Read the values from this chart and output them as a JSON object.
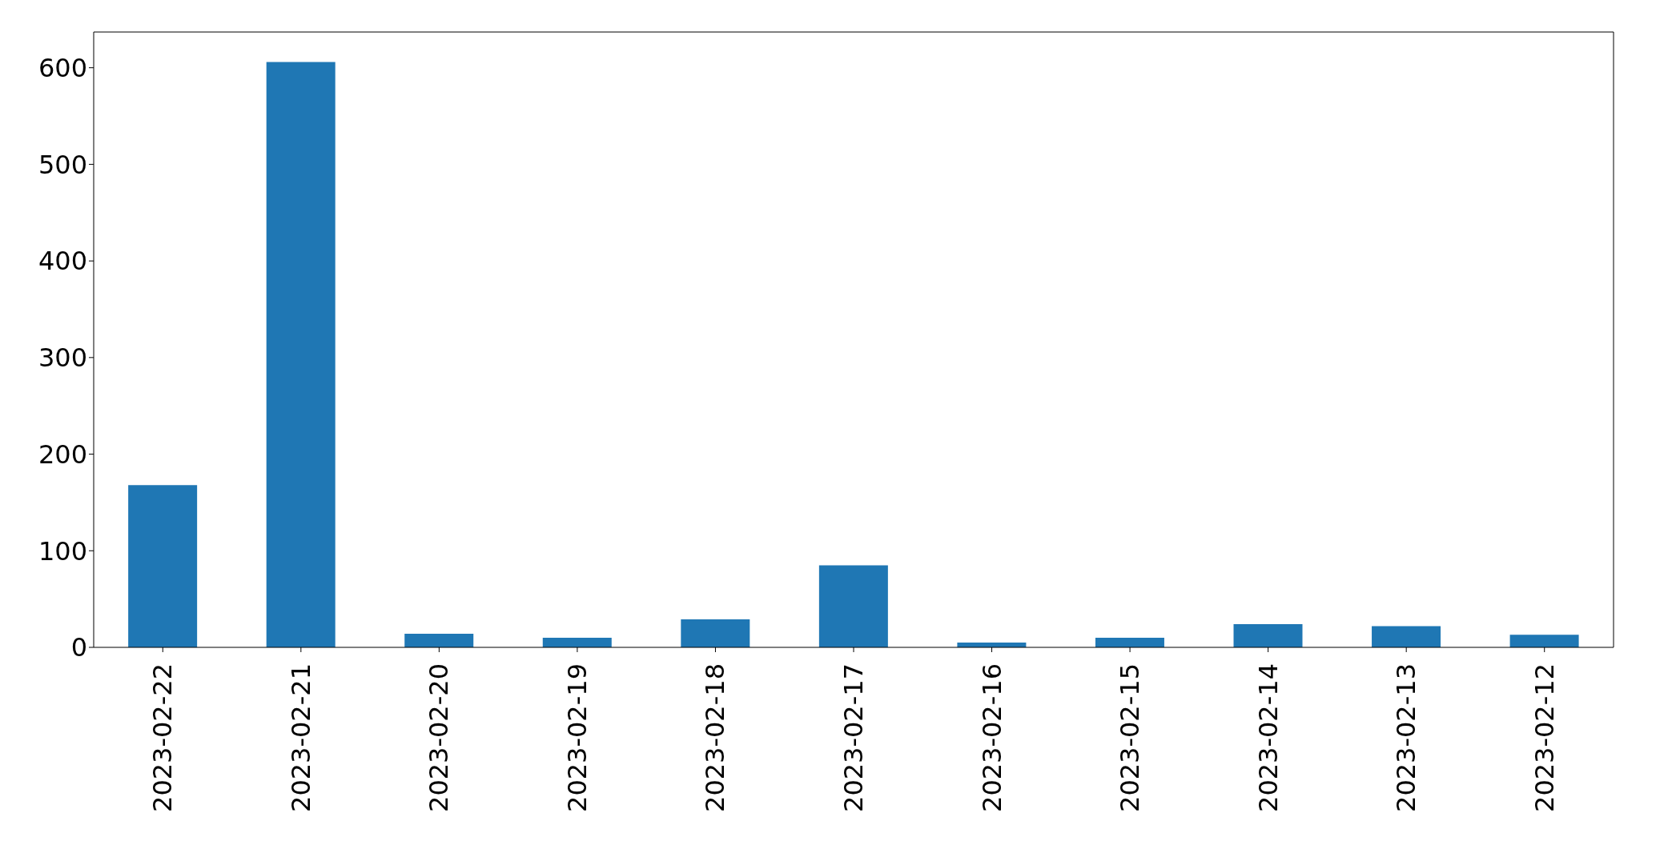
{
  "chart_data": {
    "type": "bar",
    "categories": [
      "2023-02-22",
      "2023-02-21",
      "2023-02-20",
      "2023-02-19",
      "2023-02-18",
      "2023-02-17",
      "2023-02-16",
      "2023-02-15",
      "2023-02-14",
      "2023-02-13",
      "2023-02-12"
    ],
    "values": [
      168,
      606,
      14,
      10,
      29,
      85,
      5,
      10,
      24,
      22,
      13
    ],
    "color": "#1f77b4",
    "ylim": [
      0,
      637
    ],
    "yticks": [
      0,
      100,
      200,
      300,
      400,
      500,
      600
    ],
    "grid": false,
    "legend": false
  }
}
